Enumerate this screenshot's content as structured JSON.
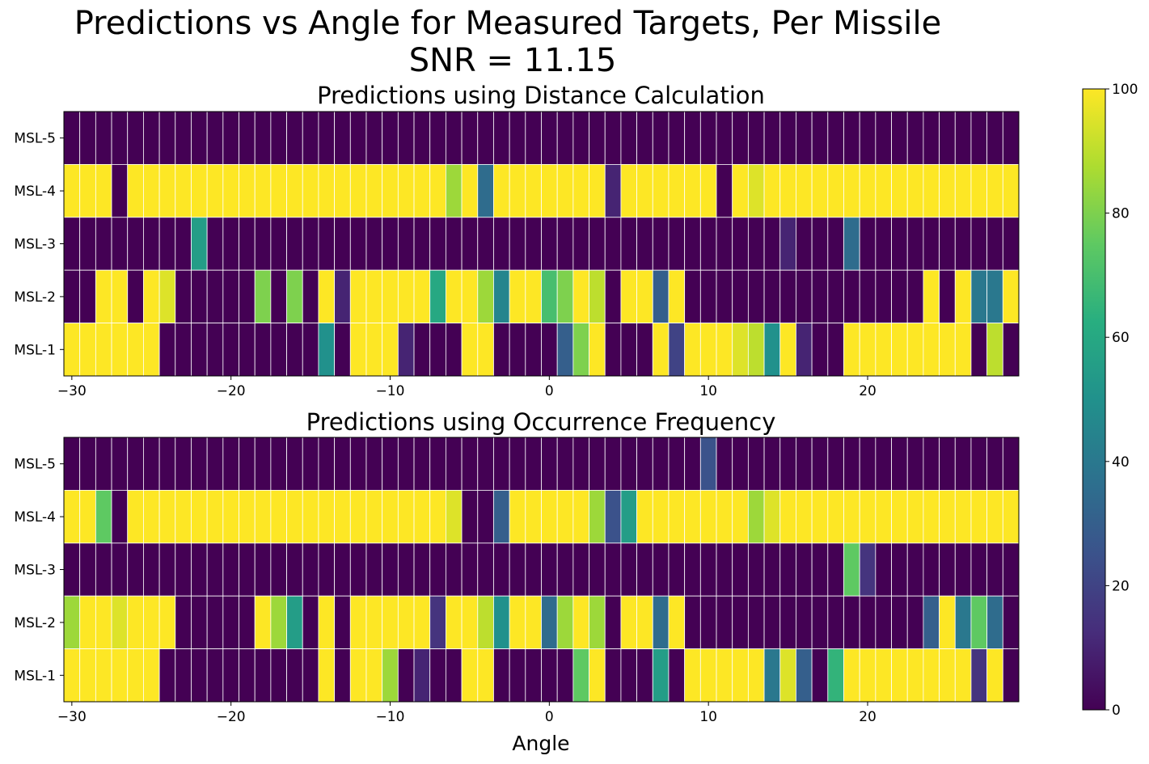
{
  "chart_data": {
    "type": "heatmap",
    "title_line1": "Predictions vs Angle for Measured Targets, Per Missile",
    "title_line2": "SNR = 11.15",
    "xlabel": "Angle",
    "x_start": -30,
    "x_step": 1,
    "xlim": [
      -30.5,
      29.5
    ],
    "x_ticks": [
      -30,
      -20,
      -10,
      0,
      10,
      20
    ],
    "x_tick_labels": [
      "−30",
      "−20",
      "−10",
      "0",
      "10",
      "20"
    ],
    "rows": [
      "MSL-5",
      "MSL-4",
      "MSL-3",
      "MSL-2",
      "MSL-1"
    ],
    "colormap": "viridis",
    "colorbar": {
      "min": 0,
      "max": 100,
      "ticks": [
        0,
        20,
        40,
        60,
        80,
        100
      ],
      "tick_labels": [
        "0",
        "20",
        "40",
        "60",
        "80",
        "100"
      ]
    },
    "panels": [
      {
        "title": "Predictions using Distance Calculation",
        "values": [
          [
            0,
            0,
            0,
            0,
            0,
            0,
            0,
            0,
            0,
            0,
            0,
            0,
            0,
            0,
            0,
            0,
            0,
            0,
            0,
            0,
            0,
            0,
            0,
            0,
            0,
            0,
            0,
            0,
            0,
            0,
            0,
            0,
            0,
            0,
            0,
            0,
            0,
            0,
            0,
            0,
            0,
            0,
            0,
            0,
            0,
            0,
            0,
            0,
            0,
            0,
            0,
            0,
            0,
            0,
            0,
            0,
            0,
            0,
            0,
            0
          ],
          [
            100,
            100,
            100,
            0,
            100,
            100,
            100,
            100,
            100,
            100,
            100,
            100,
            100,
            100,
            100,
            100,
            100,
            100,
            100,
            100,
            100,
            100,
            100,
            100,
            85,
            100,
            35,
            100,
            100,
            100,
            100,
            100,
            100,
            100,
            10,
            100,
            100,
            100,
            100,
            100,
            100,
            0,
            100,
            95,
            100,
            100,
            100,
            100,
            100,
            100,
            100,
            100,
            100,
            100,
            100,
            100,
            100,
            100,
            100,
            100
          ],
          [
            0,
            0,
            0,
            0,
            0,
            0,
            0,
            0,
            55,
            0,
            0,
            0,
            0,
            0,
            0,
            0,
            0,
            0,
            0,
            0,
            0,
            0,
            0,
            0,
            0,
            0,
            0,
            0,
            0,
            0,
            0,
            0,
            0,
            0,
            0,
            0,
            0,
            0,
            0,
            0,
            0,
            0,
            0,
            0,
            0,
            10,
            0,
            0,
            0,
            35,
            0,
            0,
            0,
            0,
            0,
            0,
            0,
            0,
            0,
            0
          ],
          [
            0,
            0,
            100,
            100,
            0,
            100,
            95,
            0,
            0,
            0,
            0,
            0,
            80,
            0,
            80,
            0,
            100,
            10,
            100,
            100,
            100,
            100,
            100,
            60,
            100,
            100,
            85,
            45,
            100,
            100,
            70,
            80,
            100,
            90,
            0,
            100,
            100,
            30,
            100,
            0,
            0,
            0,
            0,
            0,
            0,
            0,
            0,
            0,
            0,
            0,
            0,
            0,
            0,
            0,
            100,
            0,
            100,
            40,
            40,
            100
          ],
          [
            100,
            100,
            100,
            100,
            100,
            100,
            0,
            0,
            0,
            0,
            0,
            0,
            0,
            0,
            0,
            0,
            50,
            0,
            100,
            100,
            100,
            10,
            0,
            0,
            0,
            100,
            100,
            0,
            0,
            0,
            0,
            30,
            80,
            100,
            0,
            0,
            0,
            100,
            20,
            100,
            100,
            100,
            95,
            90,
            50,
            100,
            10,
            0,
            0,
            100,
            100,
            100,
            100,
            100,
            100,
            100,
            100,
            0,
            90,
            0
          ]
        ]
      },
      {
        "title": "Predictions using Occurrence Frequency",
        "values": [
          [
            0,
            0,
            0,
            0,
            0,
            0,
            0,
            0,
            0,
            0,
            0,
            0,
            0,
            0,
            0,
            0,
            0,
            0,
            0,
            0,
            0,
            0,
            0,
            0,
            0,
            0,
            0,
            0,
            0,
            0,
            0,
            0,
            0,
            0,
            0,
            0,
            0,
            0,
            0,
            0,
            25,
            0,
            0,
            0,
            0,
            0,
            0,
            0,
            0,
            0,
            0,
            0,
            0,
            0,
            0,
            0,
            0,
            0,
            0,
            0
          ],
          [
            100,
            100,
            75,
            0,
            100,
            100,
            100,
            100,
            100,
            100,
            100,
            100,
            100,
            100,
            100,
            100,
            100,
            100,
            100,
            100,
            100,
            100,
            100,
            100,
            95,
            0,
            0,
            30,
            100,
            100,
            100,
            100,
            100,
            85,
            25,
            55,
            100,
            100,
            100,
            100,
            100,
            100,
            100,
            85,
            95,
            100,
            100,
            100,
            100,
            100,
            100,
            100,
            100,
            100,
            100,
            100,
            100,
            100,
            100,
            100
          ],
          [
            0,
            0,
            0,
            0,
            0,
            0,
            0,
            0,
            0,
            0,
            0,
            0,
            0,
            0,
            0,
            0,
            0,
            0,
            0,
            0,
            0,
            0,
            0,
            0,
            0,
            0,
            0,
            0,
            0,
            0,
            0,
            0,
            0,
            0,
            0,
            0,
            0,
            0,
            0,
            0,
            0,
            0,
            0,
            0,
            0,
            0,
            0,
            0,
            0,
            75,
            15,
            0,
            0,
            0,
            0,
            0,
            0,
            0,
            0,
            0
          ],
          [
            85,
            100,
            100,
            95,
            100,
            100,
            100,
            0,
            0,
            0,
            0,
            0,
            100,
            85,
            55,
            0,
            100,
            0,
            100,
            100,
            100,
            100,
            100,
            15,
            100,
            100,
            90,
            50,
            100,
            100,
            35,
            85,
            100,
            85,
            0,
            100,
            100,
            35,
            100,
            0,
            0,
            0,
            0,
            0,
            0,
            0,
            0,
            0,
            0,
            0,
            0,
            0,
            0,
            0,
            30,
            100,
            40,
            75,
            35,
            0
          ],
          [
            100,
            100,
            100,
            100,
            100,
            100,
            0,
            0,
            0,
            0,
            0,
            0,
            0,
            0,
            0,
            0,
            100,
            0,
            100,
            100,
            85,
            0,
            10,
            0,
            0,
            100,
            100,
            0,
            0,
            0,
            0,
            0,
            75,
            100,
            0,
            0,
            0,
            55,
            0,
            100,
            100,
            100,
            100,
            100,
            40,
            95,
            30,
            0,
            65,
            100,
            100,
            100,
            100,
            100,
            100,
            100,
            100,
            15,
            100,
            0
          ]
        ]
      }
    ]
  }
}
